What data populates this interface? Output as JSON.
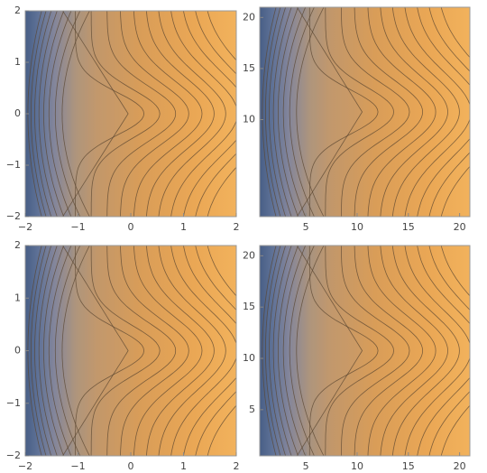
{
  "chart_data": [
    {
      "type": "contour",
      "xlim": [
        -2,
        2
      ],
      "ylim": [
        -2,
        2
      ],
      "xticks": [
        {
          "value": -2,
          "label": "−2"
        },
        {
          "value": -1,
          "label": "−1"
        },
        0,
        1,
        2
      ],
      "yticks": [
        {
          "value": -2,
          "label": "−2"
        },
        {
          "value": -1,
          "label": "−1"
        },
        0,
        1,
        2
      ]
    },
    {
      "type": "contour",
      "xlim": [
        0.5,
        21
      ],
      "ylim": [
        0.5,
        21
      ],
      "xticks": [
        5,
        10,
        15,
        20
      ],
      "yticks": [
        10,
        15,
        20
      ]
    },
    {
      "type": "contour",
      "xlim": [
        -2,
        2
      ],
      "ylim": [
        -2,
        2
      ],
      "xticks": [
        {
          "value": -2,
          "label": "−2"
        },
        {
          "value": -1,
          "label": "−1"
        },
        0,
        1,
        2
      ],
      "yticks": [
        {
          "value": -2,
          "label": "−2"
        },
        {
          "value": -1,
          "label": "−1"
        },
        0,
        1,
        2
      ]
    },
    {
      "type": "contour",
      "xlim": [
        0.5,
        21
      ],
      "ylim": [
        0.5,
        21
      ],
      "xticks": [
        5,
        10,
        15,
        20
      ],
      "yticks": [
        5,
        10,
        15,
        20
      ]
    }
  ]
}
